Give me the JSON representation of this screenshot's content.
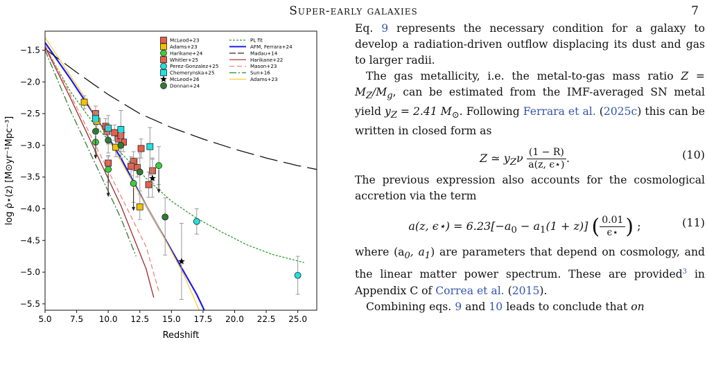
{
  "header": {
    "title": "Super-early galaxies",
    "page": "7"
  },
  "chart_data": {
    "type": "scatter",
    "xlabel": "Redshift",
    "ylabel": "log ρ̇⋆(z) [M⊙yr⁻¹Mpc⁻³]",
    "xlim": [
      5,
      26.5
    ],
    "ylim": [
      -5.6,
      -1.2
    ],
    "xticks": [
      5.0,
      7.5,
      10.0,
      12.5,
      15.0,
      17.5,
      20.0,
      22.5,
      25.0
    ],
    "xtick_labels": [
      "5.0",
      "7.5",
      "10.0",
      "12.5",
      "15.0",
      "17.5",
      "20.0",
      "22.5",
      "25.0"
    ],
    "yticks": [
      -1.5,
      -2.0,
      -2.5,
      -3.0,
      -3.5,
      -4.0,
      -4.5,
      -5.0,
      -5.5
    ],
    "ytick_labels": [
      "−1.5",
      "−2.0",
      "−2.5",
      "−3.0",
      "−3.5",
      "−4.0",
      "−4.5",
      "−5.0",
      "−5.5"
    ],
    "grid": false,
    "legend_placement": "top-right",
    "marker_series": [
      {
        "name": "McLeod+23",
        "marker": "square",
        "color": "#e8604c",
        "points": [
          [
            9.0,
            -2.5,
            0.12,
            0.12
          ],
          [
            9.9,
            -2.78,
            0.12,
            0.12
          ],
          [
            10.5,
            -2.8,
            0.12,
            0.12
          ],
          [
            11.2,
            -2.95,
            0.15,
            0.15
          ],
          [
            12.0,
            -3.25,
            0.15,
            0.15
          ],
          [
            12.6,
            -3.05,
            0.15,
            0.15
          ],
          [
            13.2,
            -3.62,
            0.2,
            0.2
          ],
          [
            13.5,
            -3.4,
            0.2,
            0.2
          ],
          [
            10.0,
            -3.28,
            0.12,
            0.12
          ],
          [
            10.8,
            -2.9,
            0.12,
            0.12
          ],
          [
            11.8,
            -3.33,
            0.15,
            0.15
          ]
        ]
      },
      {
        "name": "Adams+23",
        "marker": "square",
        "color": "#f2c200",
        "points": [
          [
            8.1,
            -2.32,
            0.1,
            0.1
          ],
          [
            9.1,
            -2.62,
            0.12,
            0.12
          ],
          [
            10.6,
            -3.03,
            0.15,
            0.15
          ],
          [
            12.5,
            -3.97,
            0.2,
            0.2
          ]
        ]
      },
      {
        "name": "Harikane+24",
        "marker": "circle",
        "color": "#3ccf3c",
        "points": [
          [
            9.0,
            -2.95,
            0.15,
            0.15
          ],
          [
            10.0,
            -3.38,
            0.2,
            0.2
          ],
          [
            12.0,
            -3.6,
            0.3,
            0.3
          ],
          [
            14.0,
            -3.32,
            0.3,
            0.3
          ]
        ]
      },
      {
        "name": "Whitler+25",
        "marker": "square",
        "color": "#e8604c",
        "points": [
          [
            9.8,
            -2.7,
            0.12,
            0.12
          ],
          [
            11.0,
            -2.85,
            0.15,
            0.15
          ],
          [
            12.3,
            -3.35,
            0.15,
            0.15
          ]
        ]
      },
      {
        "name": "Perez-Gonzalez+25",
        "marker": "circle",
        "color": "#22e0e0",
        "points": [
          [
            17.0,
            -4.2,
            0.2,
            0.2
          ],
          [
            25.0,
            -5.05,
            0.3,
            0.3
          ]
        ]
      },
      {
        "name": "Chemerynska+25",
        "marker": "square",
        "color": "#22e0e0",
        "points": [
          [
            9.0,
            -2.58,
            0.1,
            0.1
          ],
          [
            10.0,
            -2.73,
            0.25,
            0.2
          ],
          [
            11.0,
            -2.75,
            0.45,
            0.3
          ],
          [
            13.3,
            -3.02,
            0.45,
            0.3
          ]
        ]
      },
      {
        "name": "McLeod+26",
        "marker": "star",
        "color": "#000000",
        "points": [
          [
            13.5,
            -3.52,
            0.3,
            0.3
          ],
          [
            15.8,
            -4.83,
            0.6,
            0.6
          ]
        ]
      },
      {
        "name": "Donnan+24",
        "marker": "circle",
        "color": "#2e7d32",
        "points": [
          [
            9.0,
            -2.78,
            0.15,
            0.15
          ],
          [
            10.0,
            -2.92,
            0.2,
            0.2
          ],
          [
            11.0,
            -3.0,
            0.2,
            0.2
          ],
          [
            12.5,
            -3.42,
            0.3,
            0.3
          ],
          [
            14.5,
            -4.13,
            0.6,
            0.3
          ]
        ]
      }
    ],
    "upper_limits": [
      [
        9.0,
        -2.78
      ],
      [
        10.0,
        -3.38
      ],
      [
        12.0,
        -3.6
      ],
      [
        14.0,
        -3.32
      ]
    ],
    "line_series": [
      {
        "name": "PL fit",
        "color": "#2e9b2e",
        "dash": "dotted",
        "x": [
          5,
          7,
          9,
          11,
          13,
          15,
          17,
          19,
          21,
          23,
          25.5
        ],
        "y": [
          -1.45,
          -2.15,
          -2.7,
          -3.12,
          -3.52,
          -3.88,
          -4.15,
          -4.37,
          -4.57,
          -4.72,
          -4.85
        ]
      },
      {
        "name": "AFM, Ferrara+24",
        "color": "#1a1aee",
        "dash": "solid",
        "x": [
          5,
          7,
          9,
          11,
          13,
          15,
          17,
          17.6
        ],
        "y": [
          -1.38,
          -1.95,
          -2.55,
          -3.2,
          -3.95,
          -4.65,
          -5.35,
          -5.6
        ]
      },
      {
        "name": "Madau+14",
        "color": "#111111",
        "dash": "long-dash",
        "x": [
          5,
          7.5,
          10,
          12.5,
          15,
          17.5,
          20,
          22.5,
          25,
          26.5
        ],
        "y": [
          -1.48,
          -1.85,
          -2.2,
          -2.5,
          -2.72,
          -2.9,
          -3.06,
          -3.2,
          -3.32,
          -3.38
        ]
      },
      {
        "name": "Harikane+22",
        "color": "#a0282d",
        "dash": "solid",
        "x": [
          5,
          7,
          9,
          11,
          13,
          13.6
        ],
        "y": [
          -1.45,
          -2.25,
          -3.1,
          -3.95,
          -4.95,
          -5.4
        ]
      },
      {
        "name": "Mason+23",
        "color": "#e5887a",
        "dash": "dashed",
        "x": [
          5,
          7,
          9,
          11,
          13,
          14
        ],
        "y": [
          -1.42,
          -2.2,
          -3.0,
          -3.8,
          -4.6,
          -5.3
        ]
      },
      {
        "name": "Sun+16",
        "color": "#2e7d32",
        "dash": "dash-dot",
        "x": [
          5,
          7,
          9,
          11,
          12.2
        ],
        "y": [
          -1.5,
          -2.45,
          -3.3,
          -4.15,
          -4.75
        ]
      },
      {
        "name": "Adams+23",
        "color": "#ffcc33",
        "dash": "solid",
        "x": [
          5,
          8,
          11,
          14,
          16,
          17.2
        ],
        "y": [
          -1.3,
          -2.2,
          -3.25,
          -4.3,
          -5.05,
          -5.6
        ]
      }
    ]
  },
  "text": {
    "p1": [
      {
        "t": "Eq. "
      },
      {
        "t": "9",
        "link": true
      },
      {
        "t": " represents the necessary condition for a galaxy to develop a radiation-driven outflow displacing its dust and gas to larger radii."
      }
    ],
    "p2": [
      {
        "t": "The gas metallicity, i.e. the metal-to-gas mass ratio "
      },
      {
        "m": "Z = M<sub>Z</sub>/M<sub>g</sub>"
      },
      {
        "t": ", can be estimated from the IMF-averaged SN metal yield "
      },
      {
        "m": "y<sub>Z</sub> = 2.41 M<sub>⊙</sub>"
      },
      {
        "t": ". Following "
      },
      {
        "t": "Ferrara et al.",
        "link": true
      },
      {
        "t": " ("
      },
      {
        "t": "2025c",
        "link": true
      },
      {
        "t": ") this can be written in closed form as"
      }
    ],
    "eq10_lhs": "Z ≃ y",
    "eq10_sub": "Z",
    "eq10_nu": "ν",
    "eq10_num": "(1 − R)",
    "eq10_den": "a(z, ϵ⋆)",
    "eq10_label": "(10)",
    "p3": [
      {
        "t": "The previous expression also accounts for the cosmological accretion via the term"
      }
    ],
    "eq11_lhs": "a(z, ϵ⋆) = 6.23[−a",
    "eq11_mid": " − a",
    "eq11_rest": "(1 + z)]",
    "eq11_num": "0.01",
    "eq11_den": "ϵ⋆",
    "eq11_label": "(11)",
    "p4": [
      {
        "t": "where (a"
      },
      {
        "m": "<sub>0</sub>, a<sub>1</sub>"
      },
      {
        "t": ") are parameters that depend on cosmology, and the linear matter power spectrum. These are provided"
      },
      {
        "fn": "3"
      },
      {
        "t": " in Appendix C of "
      },
      {
        "t": "Correa et al.",
        "link": true
      },
      {
        "t": " ("
      },
      {
        "t": "2015",
        "link": true
      },
      {
        "t": ")."
      }
    ],
    "p5": [
      {
        "t": "Combining eqs. "
      },
      {
        "t": "9",
        "link": true
      },
      {
        "t": " and "
      },
      {
        "t": "10",
        "link": true
      },
      {
        "t": " leads to conclude that "
      },
      {
        "i": "on"
      }
    ]
  }
}
